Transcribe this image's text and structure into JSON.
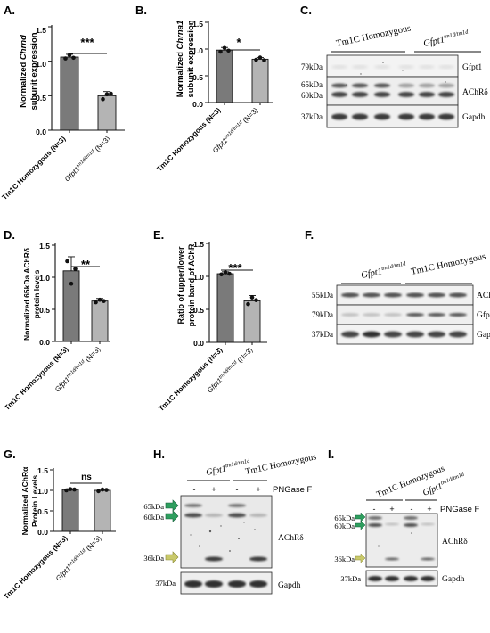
{
  "panels": {
    "A": {
      "letter": "A.",
      "ylabel_pre": "Normalized ",
      "ylabel_gene": "Chrnd",
      "ylabel_line2": "subunit expression",
      "yticks": [
        "0.0",
        "0.5",
        "1.0",
        "1.5"
      ],
      "significance": "***",
      "tick_labels": [
        "Tm1C Homozygous (N=3)",
        "Gfpt1",
        "tm1d/tm1d",
        " (N=3)"
      ]
    },
    "B": {
      "letter": "B.",
      "ylabel_pre": "Normalized ",
      "ylabel_gene": "Chrna1",
      "ylabel_line2": "subunit expression",
      "yticks": [
        "0.0",
        "0.5",
        "1.0",
        "1.5"
      ],
      "significance": "*",
      "tick_labels": [
        "Tm1C Homozygous (N=3)",
        "Gfpt1",
        "tm1d/tm1d",
        " (N=3)"
      ]
    },
    "C": {
      "letter": "C.",
      "group_labels": [
        "Tm1C Homozygous",
        "Gfpt1",
        "tm1d/tm1d"
      ],
      "markers": [
        "79kDa",
        "65kDa",
        "60kDa",
        "37kDa"
      ],
      "bands": [
        "Gfpt1",
        "AChRδ",
        "Gapdh"
      ]
    },
    "D": {
      "letter": "D.",
      "ylabel_line1": "Normalized 65kDa AChRδ",
      "ylabel_line2": "protein levels",
      "yticks": [
        "0.0",
        "0.5",
        "1.0",
        "1.5"
      ],
      "significance": "**",
      "tick_labels": [
        "Tm1C Homozygous (N=3)",
        "Gfpt1",
        "tm1d/tm1d",
        " (N=3)"
      ]
    },
    "E": {
      "letter": "E.",
      "ylabel_line1": "Ratio of upper/lower",
      "ylabel_line2": "protein band of AChR",
      "yticks": [
        "0.0",
        "0.5",
        "1.0",
        "1.5"
      ],
      "significance": "***",
      "tick_labels": [
        "Tm1C Homozygous (N=3)",
        "Gfpt1",
        "tm1d/tm1d",
        " (N=3)"
      ]
    },
    "F": {
      "letter": "F.",
      "group_labels": [
        "Gfpt1",
        "tm1d/tm1d",
        "Tm1C Homozygous"
      ],
      "markers": [
        "55kDa",
        "79kDa",
        "37kDa"
      ],
      "bands": [
        "AChRα",
        "Gfpt1",
        "Gapdh"
      ]
    },
    "G": {
      "letter": "G.",
      "ylabel_line1": "Normalized AChRα",
      "ylabel_line2": "Protein Levels",
      "yticks": [
        "0.0",
        "0.5",
        "1.0",
        "1.5"
      ],
      "significance": "ns",
      "tick_labels": [
        "Tm1C Homozygous (N=3)",
        "Gfpt1",
        "tm1d/tm1d",
        " (N=3)"
      ]
    },
    "H": {
      "letter": "H.",
      "group_labels": [
        "Gfpt1",
        "tm1d/tm1d",
        "Tm1C Homozygous"
      ],
      "treatment_signs": [
        "-",
        "+",
        "-",
        "+"
      ],
      "treatment": "PNGase F",
      "markers": [
        "65kDa",
        "60kDa",
        "36kDa",
        "37kDa"
      ],
      "bands": [
        "AChRδ",
        "Gapdh"
      ]
    },
    "I": {
      "letter": "I.",
      "group_labels": [
        "Tm1C Homozygous",
        "Gfpt1",
        "tm1d/tm1d"
      ],
      "treatment_signs": [
        "-",
        "+",
        "-",
        "+"
      ],
      "treatment": "PNGase F",
      "markers": [
        "65kDa",
        "60kDa",
        "36kDa",
        "37kDa"
      ],
      "bands": [
        "AChRδ",
        "Gapdh"
      ]
    }
  },
  "colors": {
    "bar_homozygous": "#7a7a7a",
    "bar_mutant": "#b4b4b4",
    "arrow_green": "#2e9e5e",
    "arrow_yellow": "#c9c96a"
  },
  "chart_data": [
    {
      "type": "bar",
      "panel": "A",
      "categories": [
        "Tm1C Homozygous (N=3)",
        "Gfpt1 tm1d/tm1d (N=3)"
      ],
      "values": [
        1.06,
        0.5
      ],
      "errors": [
        0.04,
        0.06
      ],
      "points": [
        [
          1.04,
          1.09,
          1.05
        ],
        [
          0.45,
          0.52,
          0.53
        ]
      ],
      "ylim": [
        0,
        1.5
      ]
    },
    {
      "type": "bar",
      "panel": "B",
      "categories": [
        "Tm1C Homozygous (N=3)",
        "Gfpt1 tm1d/tm1d (N=3)"
      ],
      "values": [
        0.98,
        0.81
      ],
      "errors": [
        0.05,
        0.03
      ],
      "points": [
        [
          0.95,
          1.02,
          0.97
        ],
        [
          0.8,
          0.84,
          0.79
        ]
      ],
      "ylim": [
        0,
        1.5
      ]
    },
    {
      "type": "bar",
      "panel": "D",
      "categories": [
        "Tm1C Homozygous (N=3)",
        "Gfpt1 tm1d/tm1d (N=3)"
      ],
      "values": [
        1.1,
        0.63
      ],
      "errors": [
        0.22,
        0.04
      ],
      "points": [
        [
          1.25,
          0.9,
          1.13
        ],
        [
          0.61,
          0.65,
          0.63
        ]
      ],
      "ylim": [
        0,
        1.5
      ]
    },
    {
      "type": "bar",
      "panel": "E",
      "categories": [
        "Tm1C Homozygous (N=3)",
        "Gfpt1 tm1d/tm1d (N=3)"
      ],
      "values": [
        1.04,
        0.63
      ],
      "errors": [
        0.03,
        0.08
      ],
      "points": [
        [
          1.03,
          1.06,
          1.04
        ],
        [
          0.58,
          0.68,
          0.64
        ]
      ],
      "ylim": [
        0,
        1.5
      ]
    },
    {
      "type": "bar",
      "panel": "G",
      "categories": [
        "Tm1C Homozygous (N=3)",
        "Gfpt1 tm1d/tm1d (N=3)"
      ],
      "values": [
        1.02,
        1.0
      ],
      "errors": [
        0.02,
        0.03
      ],
      "points": [
        [
          1.0,
          1.03,
          1.02
        ],
        [
          0.98,
          1.02,
          1.01
        ]
      ],
      "ylim": [
        0,
        1.5
      ]
    }
  ]
}
